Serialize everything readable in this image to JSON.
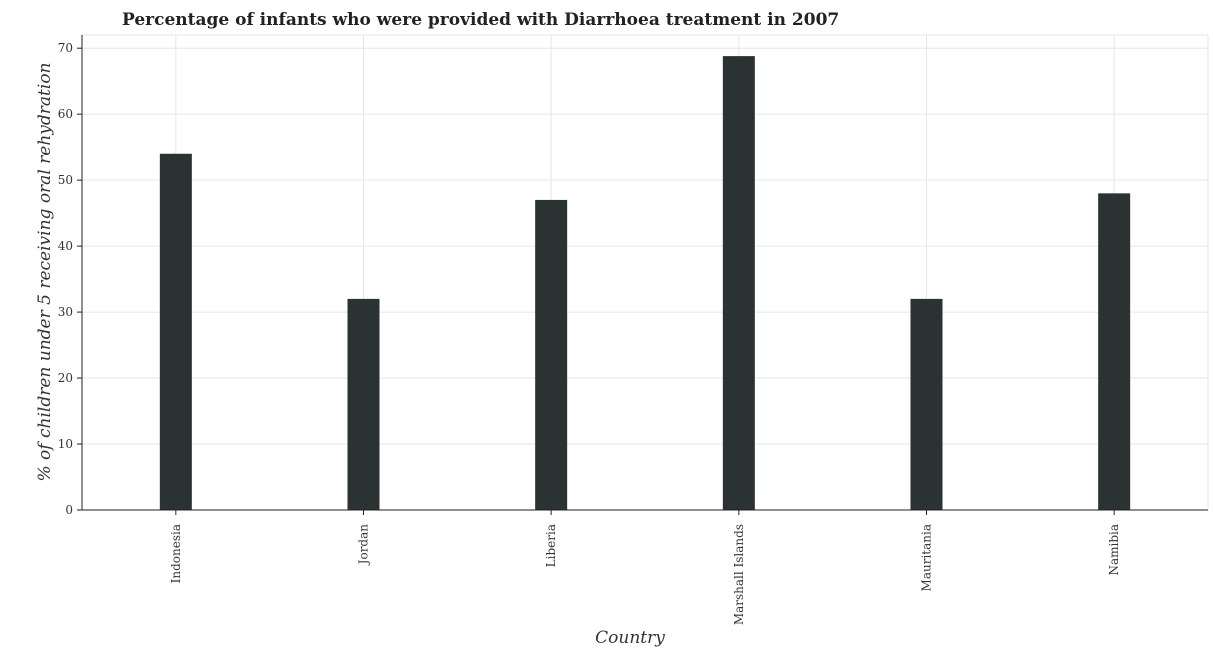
{
  "chart_data": {
    "type": "bar",
    "title": "Percentage of infants who were provided with Diarrhoea treatment in 2007",
    "xlabel": "Country",
    "ylabel": "% of children under 5 receiving oral rehydration",
    "categories": [
      "Indonesia",
      "Jordan",
      "Liberia",
      "Marshall Islands",
      "Mauritania",
      "Namibia"
    ],
    "values": [
      54,
      32,
      47,
      68.8,
      32,
      48
    ],
    "ylim": [
      0,
      72
    ],
    "yticks": [
      0,
      10,
      20,
      30,
      40,
      50,
      60,
      70
    ],
    "grid": true,
    "bar_color": "#2a3332"
  }
}
